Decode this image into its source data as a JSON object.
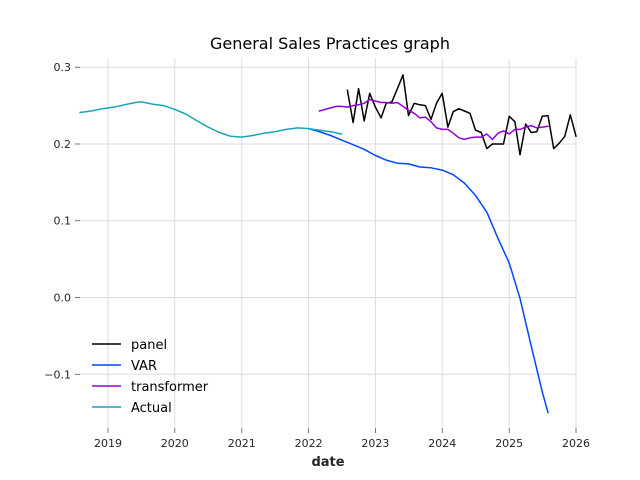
{
  "chart_data": {
    "type": "line",
    "title": "General Sales Practices graph",
    "xlabel": "date",
    "ylabel": "",
    "xlim": [
      "2018-08-01",
      "2026-01-01"
    ],
    "ylim": [
      -0.17,
      0.312
    ],
    "xticks": [
      {
        "label": "2019",
        "date": "2019-01-01"
      },
      {
        "label": "2020",
        "date": "2020-01-01"
      },
      {
        "label": "2021",
        "date": "2021-01-01"
      },
      {
        "label": "2022",
        "date": "2022-01-01"
      },
      {
        "label": "2023",
        "date": "2023-01-01"
      },
      {
        "label": "2024",
        "date": "2024-01-01"
      },
      {
        "label": "2025",
        "date": "2025-01-01"
      },
      {
        "label": "2026",
        "date": "2026-01-01"
      }
    ],
    "yticks": [
      {
        "label": "−0.1",
        "value": -0.1
      },
      {
        "label": "0.0",
        "value": 0.0
      },
      {
        "label": "0.1",
        "value": 0.1
      },
      {
        "label": "0.2",
        "value": 0.2
      },
      {
        "label": "0.3",
        "value": 0.3
      }
    ],
    "grid": true,
    "legend_position": "lower-left",
    "series": [
      {
        "name": "panel",
        "color": "#000000",
        "points": [
          [
            "2022-08-01",
            0.27
          ],
          [
            "2022-09-01",
            0.228
          ],
          [
            "2022-10-01",
            0.272
          ],
          [
            "2022-11-01",
            0.23
          ],
          [
            "2022-12-01",
            0.266
          ],
          [
            "2023-01-01",
            0.248
          ],
          [
            "2023-02-01",
            0.234
          ],
          [
            "2023-03-01",
            0.253
          ],
          [
            "2023-04-01",
            0.255
          ],
          [
            "2023-05-01",
            0.272
          ],
          [
            "2023-06-01",
            0.29
          ],
          [
            "2023-07-01",
            0.237
          ],
          [
            "2023-08-01",
            0.253
          ],
          [
            "2023-09-01",
            0.251
          ],
          [
            "2023-10-01",
            0.25
          ],
          [
            "2023-11-01",
            0.232
          ],
          [
            "2023-12-01",
            0.253
          ],
          [
            "2024-01-01",
            0.266
          ],
          [
            "2024-02-01",
            0.222
          ],
          [
            "2024-03-01",
            0.242
          ],
          [
            "2024-04-01",
            0.246
          ],
          [
            "2024-05-01",
            0.243
          ],
          [
            "2024-06-01",
            0.24
          ],
          [
            "2024-07-01",
            0.218
          ],
          [
            "2024-08-01",
            0.215
          ],
          [
            "2024-09-01",
            0.194
          ],
          [
            "2024-10-01",
            0.2
          ],
          [
            "2024-11-01",
            0.2
          ],
          [
            "2024-12-01",
            0.2
          ],
          [
            "2025-01-01",
            0.236
          ],
          [
            "2025-02-01",
            0.229
          ],
          [
            "2025-03-01",
            0.186
          ],
          [
            "2025-04-01",
            0.226
          ],
          [
            "2025-05-01",
            0.215
          ],
          [
            "2025-06-01",
            0.216
          ],
          [
            "2025-07-01",
            0.236
          ],
          [
            "2025-08-01",
            0.237
          ],
          [
            "2025-09-01",
            0.194
          ],
          [
            "2025-10-01",
            0.201
          ],
          [
            "2025-11-01",
            0.21
          ],
          [
            "2025-12-01",
            0.238
          ],
          [
            "2026-01-01",
            0.21
          ]
        ]
      },
      {
        "name": "VAR",
        "color": "#0047ff",
        "points": [
          [
            "2022-01-01",
            0.22
          ],
          [
            "2022-03-01",
            0.216
          ],
          [
            "2022-05-01",
            0.211
          ],
          [
            "2022-07-01",
            0.205
          ],
          [
            "2022-09-01",
            0.199
          ],
          [
            "2022-11-01",
            0.193
          ],
          [
            "2023-01-01",
            0.185
          ],
          [
            "2023-03-01",
            0.179
          ],
          [
            "2023-05-01",
            0.175
          ],
          [
            "2023-07-01",
            0.174
          ],
          [
            "2023-09-01",
            0.17
          ],
          [
            "2023-11-01",
            0.169
          ],
          [
            "2024-01-01",
            0.166
          ],
          [
            "2024-03-01",
            0.16
          ],
          [
            "2024-05-01",
            0.149
          ],
          [
            "2024-07-01",
            0.133
          ],
          [
            "2024-09-01",
            0.111
          ],
          [
            "2024-11-01",
            0.077
          ],
          [
            "2025-01-01",
            0.045
          ],
          [
            "2025-03-01",
            -0.001
          ],
          [
            "2025-05-01",
            -0.063
          ],
          [
            "2025-07-01",
            -0.123
          ],
          [
            "2025-08-01",
            -0.15
          ]
        ]
      },
      {
        "name": "transformer",
        "color": "#9400d3",
        "points": [
          [
            "2022-03-01",
            0.243
          ],
          [
            "2022-04-01",
            0.245
          ],
          [
            "2022-05-01",
            0.247
          ],
          [
            "2022-06-01",
            0.249
          ],
          [
            "2022-07-01",
            0.249
          ],
          [
            "2022-08-01",
            0.248
          ],
          [
            "2022-09-01",
            0.25
          ],
          [
            "2022-10-01",
            0.251
          ],
          [
            "2022-11-01",
            0.253
          ],
          [
            "2022-12-01",
            0.258
          ],
          [
            "2023-01-01",
            0.256
          ],
          [
            "2023-02-01",
            0.254
          ],
          [
            "2023-03-01",
            0.254
          ],
          [
            "2023-04-01",
            0.253
          ],
          [
            "2023-05-01",
            0.254
          ],
          [
            "2023-06-01",
            0.249
          ],
          [
            "2023-07-01",
            0.244
          ],
          [
            "2023-08-01",
            0.24
          ],
          [
            "2023-09-01",
            0.234
          ],
          [
            "2023-10-01",
            0.235
          ],
          [
            "2023-11-01",
            0.229
          ],
          [
            "2023-12-01",
            0.221
          ],
          [
            "2024-01-01",
            0.219
          ],
          [
            "2024-02-01",
            0.219
          ],
          [
            "2024-03-01",
            0.214
          ],
          [
            "2024-04-01",
            0.208
          ],
          [
            "2024-05-01",
            0.206
          ],
          [
            "2024-06-01",
            0.208
          ],
          [
            "2024-07-01",
            0.209
          ],
          [
            "2024-08-01",
            0.209
          ],
          [
            "2024-09-01",
            0.213
          ],
          [
            "2024-10-01",
            0.206
          ],
          [
            "2024-11-01",
            0.214
          ],
          [
            "2024-12-01",
            0.217
          ],
          [
            "2025-01-01",
            0.213
          ],
          [
            "2025-02-01",
            0.219
          ],
          [
            "2025-03-01",
            0.219
          ],
          [
            "2025-04-01",
            0.222
          ],
          [
            "2025-05-01",
            0.224
          ],
          [
            "2025-06-01",
            0.221
          ],
          [
            "2025-07-01",
            0.222
          ],
          [
            "2025-08-01",
            0.223
          ]
        ]
      },
      {
        "name": "Actual",
        "color": "#17a6b8",
        "points": [
          [
            "2018-08-01",
            0.241
          ],
          [
            "2018-10-01",
            0.243
          ],
          [
            "2018-12-01",
            0.246
          ],
          [
            "2019-02-01",
            0.248
          ],
          [
            "2019-04-01",
            0.251
          ],
          [
            "2019-06-01",
            0.254
          ],
          [
            "2019-07-01",
            0.255
          ],
          [
            "2019-09-01",
            0.252
          ],
          [
            "2019-11-01",
            0.25
          ],
          [
            "2020-01-01",
            0.245
          ],
          [
            "2020-03-01",
            0.239
          ],
          [
            "2020-05-01",
            0.23
          ],
          [
            "2020-07-01",
            0.222
          ],
          [
            "2020-09-01",
            0.215
          ],
          [
            "2020-11-01",
            0.21
          ],
          [
            "2021-01-01",
            0.209
          ],
          [
            "2021-03-01",
            0.211
          ],
          [
            "2021-05-01",
            0.214
          ],
          [
            "2021-07-01",
            0.216
          ],
          [
            "2021-09-01",
            0.219
          ],
          [
            "2021-11-01",
            0.221
          ],
          [
            "2022-01-01",
            0.22
          ],
          [
            "2022-03-01",
            0.218
          ],
          [
            "2022-05-01",
            0.216
          ],
          [
            "2022-07-01",
            0.213
          ]
        ]
      }
    ]
  }
}
